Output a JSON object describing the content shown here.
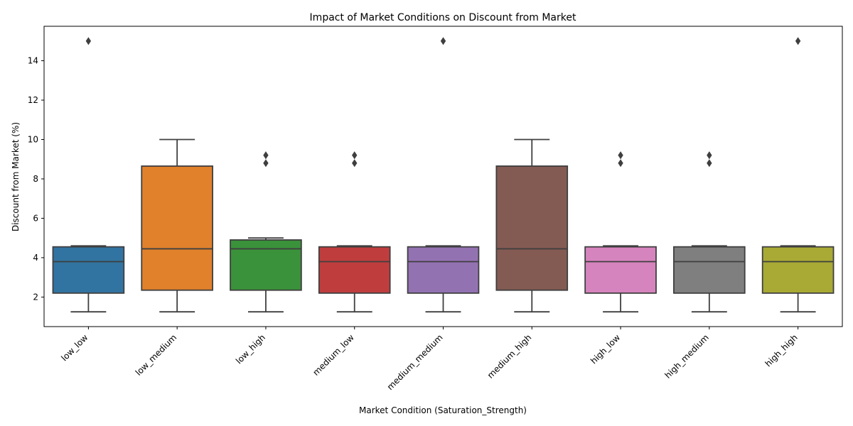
{
  "chart_data": {
    "type": "box",
    "title": "Impact of Market Conditions on Discount from Market",
    "xlabel": "Market Condition (Saturation_Strength)",
    "ylabel": "Discount from Market (%)",
    "ylim": [
      0.5,
      15.75
    ],
    "yticks": [
      2,
      4,
      6,
      8,
      10,
      12,
      14
    ],
    "grid": false,
    "legend": "none",
    "categories": [
      "low_low",
      "low_medium",
      "low_high",
      "medium_low",
      "medium_medium",
      "medium_high",
      "high_low",
      "high_medium",
      "high_high"
    ],
    "boxes": [
      {
        "category": "low_low",
        "color": "#3274a1",
        "whisker_low": 1.25,
        "q1": 2.2,
        "median": 3.8,
        "q3": 4.55,
        "whisker_high": 4.6,
        "outliers": [
          15.0
        ]
      },
      {
        "category": "low_medium",
        "color": "#e1812c",
        "whisker_low": 1.25,
        "q1": 2.35,
        "median": 4.45,
        "q3": 8.65,
        "whisker_high": 10.0,
        "outliers": []
      },
      {
        "category": "low_high",
        "color": "#3a923a",
        "whisker_low": 1.25,
        "q1": 2.35,
        "median": 4.45,
        "q3": 4.9,
        "whisker_high": 5.0,
        "outliers": [
          8.8,
          9.2
        ]
      },
      {
        "category": "medium_low",
        "color": "#c03d3e",
        "whisker_low": 1.25,
        "q1": 2.2,
        "median": 3.8,
        "q3": 4.55,
        "whisker_high": 4.6,
        "outliers": [
          8.8,
          9.2
        ]
      },
      {
        "category": "medium_medium",
        "color": "#9372b2",
        "whisker_low": 1.25,
        "q1": 2.2,
        "median": 3.8,
        "q3": 4.55,
        "whisker_high": 4.6,
        "outliers": [
          15.0
        ]
      },
      {
        "category": "medium_high",
        "color": "#845b53",
        "whisker_low": 1.25,
        "q1": 2.35,
        "median": 4.45,
        "q3": 8.65,
        "whisker_high": 10.0,
        "outliers": []
      },
      {
        "category": "high_low",
        "color": "#d684bd",
        "whisker_low": 1.25,
        "q1": 2.2,
        "median": 3.8,
        "q3": 4.55,
        "whisker_high": 4.6,
        "outliers": [
          8.8,
          9.2
        ]
      },
      {
        "category": "high_medium",
        "color": "#7f7f7f",
        "whisker_low": 1.25,
        "q1": 2.2,
        "median": 3.8,
        "q3": 4.55,
        "whisker_high": 4.6,
        "outliers": [
          8.8,
          9.2
        ]
      },
      {
        "category": "high_high",
        "color": "#a9aa35",
        "whisker_low": 1.25,
        "q1": 2.2,
        "median": 3.8,
        "q3": 4.55,
        "whisker_high": 4.6,
        "outliers": [
          15.0
        ]
      }
    ],
    "line_color": "#3f3f3f"
  }
}
